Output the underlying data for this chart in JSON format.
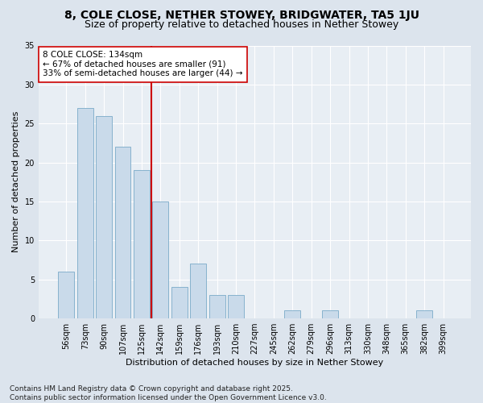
{
  "title1": "8, COLE CLOSE, NETHER STOWEY, BRIDGWATER, TA5 1JU",
  "title2": "Size of property relative to detached houses in Nether Stowey",
  "xlabel": "Distribution of detached houses by size in Nether Stowey",
  "ylabel": "Number of detached properties",
  "categories": [
    "56sqm",
    "73sqm",
    "90sqm",
    "107sqm",
    "125sqm",
    "142sqm",
    "159sqm",
    "176sqm",
    "193sqm",
    "210sqm",
    "227sqm",
    "245sqm",
    "262sqm",
    "279sqm",
    "296sqm",
    "313sqm",
    "330sqm",
    "348sqm",
    "365sqm",
    "382sqm",
    "399sqm"
  ],
  "values": [
    6,
    27,
    26,
    22,
    19,
    15,
    4,
    7,
    3,
    3,
    0,
    0,
    1,
    0,
    1,
    0,
    0,
    0,
    0,
    1,
    0
  ],
  "bar_color": "#c9daea",
  "bar_edge_color": "#7aaac8",
  "vline_index": 5,
  "vline_color": "#cc0000",
  "annotation_text": "8 COLE CLOSE: 134sqm\n← 67% of detached houses are smaller (91)\n33% of semi-detached houses are larger (44) →",
  "annotation_box_color": "white",
  "annotation_box_edgecolor": "#cc0000",
  "ylim": [
    0,
    35
  ],
  "yticks": [
    0,
    5,
    10,
    15,
    20,
    25,
    30,
    35
  ],
  "background_color": "#dce4ed",
  "plot_background_color": "#e8eef4",
  "grid_color": "#ffffff",
  "footer1": "Contains HM Land Registry data © Crown copyright and database right 2025.",
  "footer2": "Contains public sector information licensed under the Open Government Licence v3.0.",
  "title_fontsize": 10,
  "subtitle_fontsize": 9,
  "axis_label_fontsize": 8,
  "tick_fontsize": 7,
  "annotation_fontsize": 7.5,
  "footer_fontsize": 6.5
}
